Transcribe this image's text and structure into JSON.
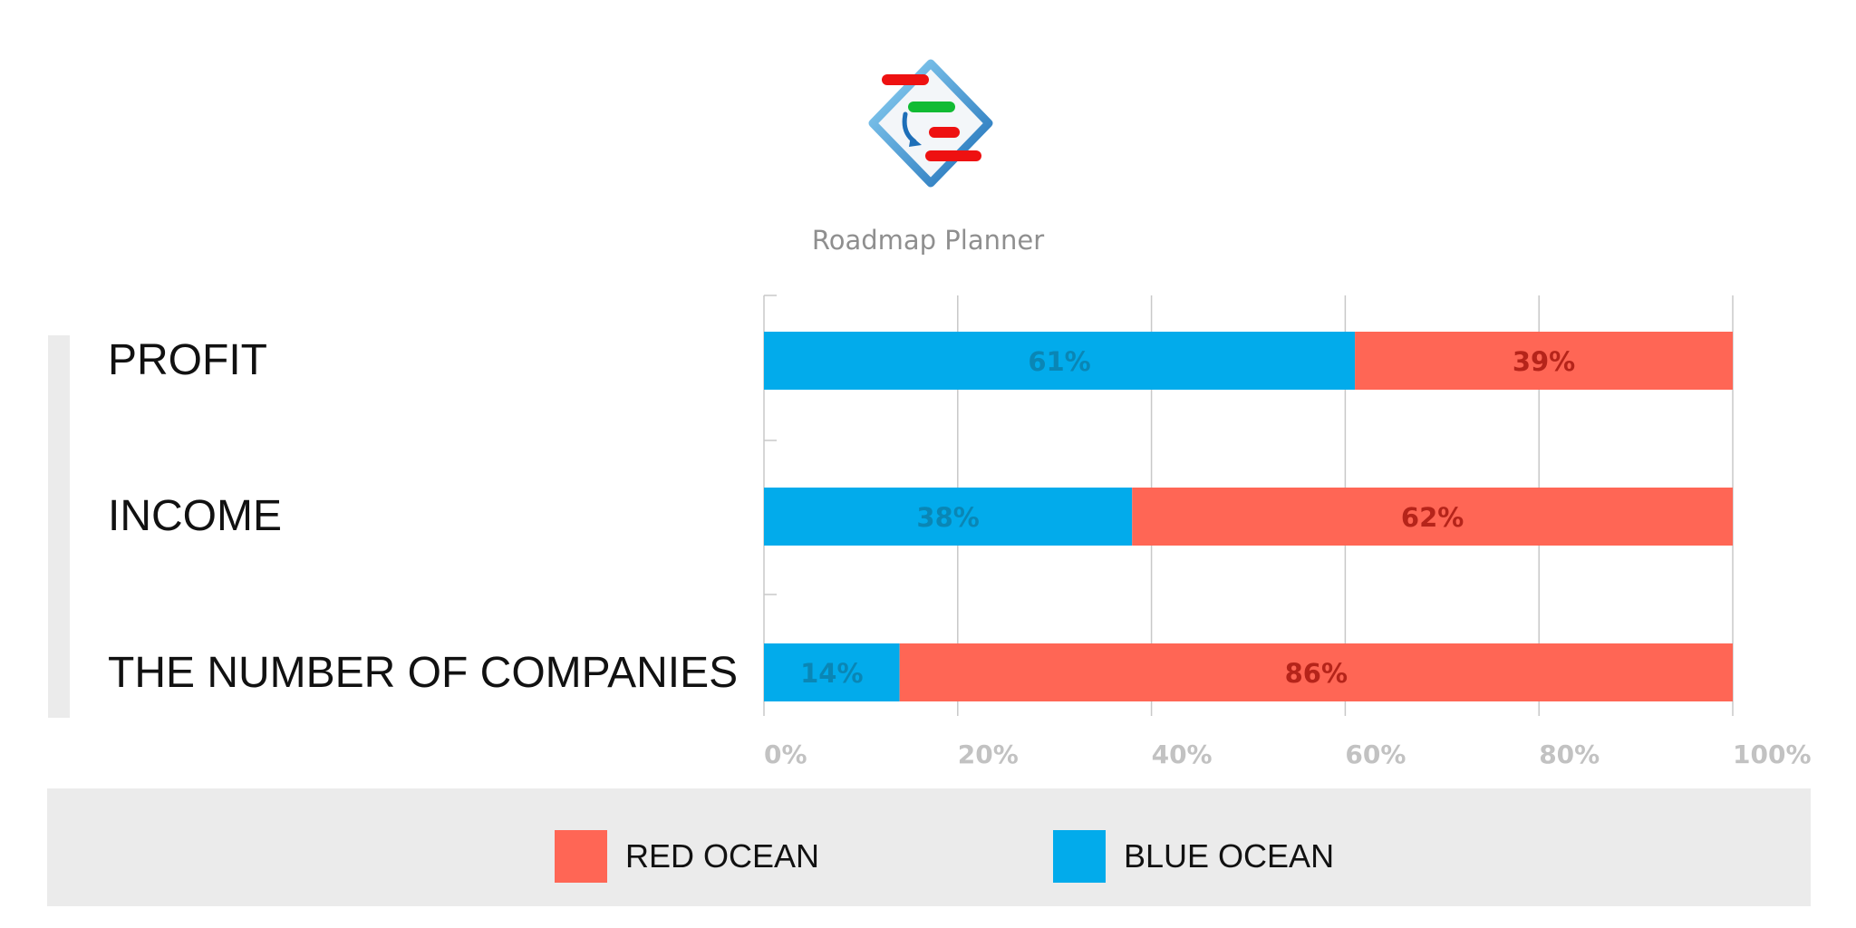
{
  "app": {
    "name": "Roadmap Planner"
  },
  "chart_data": {
    "type": "bar",
    "orientation": "horizontal",
    "stacked": true,
    "categories": [
      "PROFIT",
      "INCOME",
      "THE NUMBER OF COMPANIES"
    ],
    "series": [
      {
        "name": "BLUE OCEAN",
        "values": [
          61,
          38,
          14
        ],
        "labels": [
          "61%",
          "38%",
          "14%"
        ],
        "color": "#02abeb",
        "label_color": "#0a86b5"
      },
      {
        "name": "RED OCEAN",
        "values": [
          39,
          62,
          86
        ],
        "labels": [
          "39%",
          "62%",
          "86%"
        ],
        "color": "#ff6655",
        "label_color": "#b5241a"
      }
    ],
    "xlim": [
      0,
      100
    ],
    "xticks": [
      0,
      20,
      40,
      60,
      80,
      100
    ],
    "xtick_labels": [
      "0%",
      "20%",
      "40%",
      "60%",
      "80%",
      "100%"
    ],
    "grid": true,
    "legend": {
      "placement": "bottom",
      "order": [
        "RED OCEAN",
        "BLUE OCEAN"
      ]
    },
    "title": "",
    "xlabel": "",
    "ylabel": ""
  },
  "legend": {
    "red_label": "RED OCEAN",
    "blue_label": "BLUE OCEAN"
  },
  "colors": {
    "red": "#ff6655",
    "blue": "#02abeb",
    "grid": "#c8c8c8",
    "tick_text": "#c2c2c2",
    "band": "#ebebeb"
  }
}
